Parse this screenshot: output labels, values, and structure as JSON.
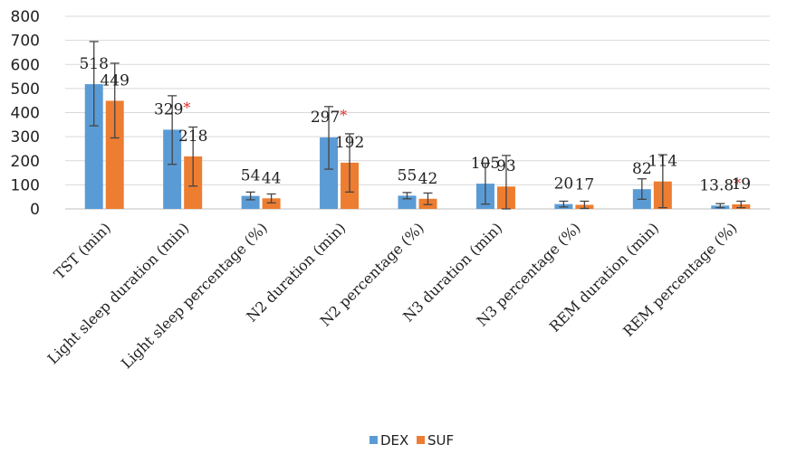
{
  "chart_data": {
    "type": "bar",
    "title": "",
    "xlabel": "",
    "ylabel": "",
    "ylim": [
      0,
      800
    ],
    "yticks": [
      0,
      100,
      200,
      300,
      400,
      500,
      600,
      700,
      800
    ],
    "grid": true,
    "legend_position": "bottom",
    "categories": [
      "TST (min)",
      "Light sleep duration (min)",
      "Light sleep percentage (%)",
      "N2 duration (min)",
      "N2 percentage (%)",
      "N3 duration (min)",
      "N3 percentage (%)",
      "REM duration (min)",
      "REM percentage (%)"
    ],
    "series": [
      {
        "name": "DEX",
        "color": "#5b9bd5",
        "values": [
          518,
          329,
          54,
          297,
          55,
          105,
          20,
          82,
          13.8
        ],
        "error_low": [
          345,
          185,
          38,
          165,
          42,
          20,
          8,
          40,
          5
        ],
        "error_high": [
          695,
          470,
          70,
          425,
          68,
          190,
          32,
          125,
          22
        ],
        "labels": [
          "518",
          "329",
          "54",
          "297",
          "55",
          "105",
          "20",
          "82",
          "13.8"
        ],
        "significant": [
          false,
          true,
          false,
          true,
          false,
          false,
          false,
          false,
          true
        ]
      },
      {
        "name": "SUF",
        "color": "#ed7d31",
        "values": [
          449,
          218,
          44,
          192,
          42,
          93,
          17,
          114,
          19
        ],
        "error_low": [
          295,
          95,
          25,
          70,
          18,
          0,
          2,
          5,
          5
        ],
        "error_high": [
          605,
          340,
          62,
          312,
          66,
          222,
          32,
          225,
          32
        ],
        "labels": [
          "449",
          "218",
          "44",
          "192",
          "42",
          "93",
          "17",
          "114",
          "19"
        ],
        "significant": [
          false,
          false,
          false,
          false,
          false,
          false,
          false,
          false,
          false
        ]
      }
    ],
    "significance_marker": "*"
  }
}
